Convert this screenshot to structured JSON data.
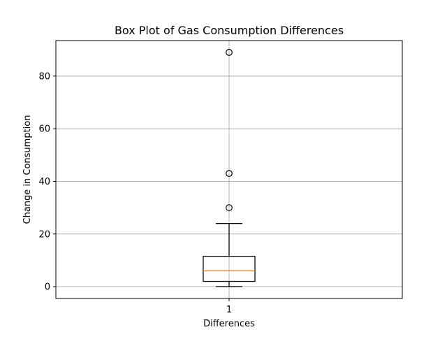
{
  "chart_data": {
    "type": "box",
    "title": "Box Plot of Gas Consumption Differences",
    "xlabel": "Differences",
    "ylabel": "Change in Consumption",
    "categories": [
      "1"
    ],
    "ylim": [
      -4.5,
      93.5
    ],
    "yticks": [
      0,
      20,
      40,
      60,
      80
    ],
    "grid": true,
    "box": {
      "whisker_low": 0,
      "q1": 2,
      "median": 6,
      "q3": 11.5,
      "whisker_high": 24,
      "outliers": [
        30,
        43,
        89
      ]
    },
    "colors": {
      "box": "#000000",
      "median": "#ff7f0e",
      "grid": "#b0b0b0",
      "axes": "#000000"
    }
  }
}
